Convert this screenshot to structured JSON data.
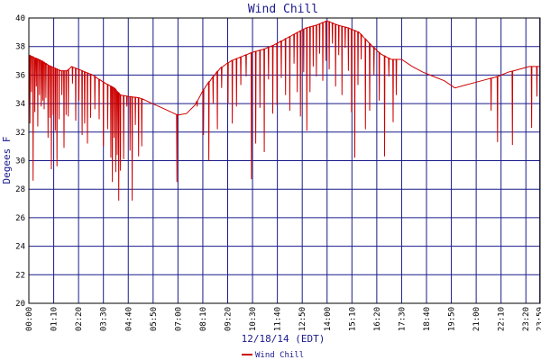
{
  "chart_data": {
    "type": "line",
    "title": "Wind Chill",
    "xlabel": "12/18/14 (EDT)",
    "ylabel": "Degees F",
    "ylim": [
      20,
      40
    ],
    "y_ticks": [
      20,
      22,
      24,
      26,
      28,
      30,
      32,
      34,
      36,
      38,
      40
    ],
    "x_tick_labels": [
      "00:00",
      "01:10",
      "02:20",
      "03:30",
      "04:40",
      "05:50",
      "07:00",
      "08:10",
      "09:20",
      "10:30",
      "11:40",
      "12:50",
      "14:00",
      "15:10",
      "16:20",
      "17:30",
      "18:40",
      "19:50",
      "21:00",
      "22:10",
      "23:20",
      "23:59"
    ],
    "x_ticks_hours": [
      0,
      1.1667,
      2.3333,
      3.5,
      4.6667,
      5.8333,
      7.0,
      8.1667,
      9.3333,
      10.5,
      11.6667,
      12.8333,
      14.0,
      15.1667,
      16.3333,
      17.5,
      18.6667,
      19.8333,
      21.0,
      22.1667,
      23.3333,
      23.9833
    ],
    "xlim_hours": [
      0,
      24
    ],
    "grid": true,
    "legend_position": "bottom",
    "series": [
      {
        "name": "Wind Chill",
        "color": "#cc0000",
        "baseline_x_hours": [
          0,
          0.3,
          0.6,
          0.9,
          1.2,
          1.5,
          1.8,
          2.0,
          2.5,
          3.0,
          3.5,
          4.0,
          4.3,
          4.7,
          5.2,
          5.8,
          6.4,
          7.0,
          7.4,
          7.8,
          8.2,
          8.6,
          9.0,
          9.5,
          10.0,
          10.5,
          11.0,
          11.5,
          12.0,
          12.5,
          13.0,
          13.5,
          14.0,
          14.5,
          15.0,
          15.5,
          16.0,
          16.5,
          17.0,
          17.5,
          18.0,
          18.5,
          19.0,
          19.5,
          20.0,
          20.5,
          21.0,
          21.5,
          22.0,
          22.5,
          23.0,
          23.5,
          24.0
        ],
        "baseline_y": [
          37.4,
          37.2,
          37.0,
          36.7,
          36.5,
          36.3,
          36.3,
          36.6,
          36.3,
          36.0,
          35.5,
          35.1,
          34.6,
          34.5,
          34.4,
          34.0,
          33.6,
          33.2,
          33.3,
          33.9,
          35.0,
          35.8,
          36.5,
          37.0,
          37.3,
          37.6,
          37.8,
          38.1,
          38.5,
          38.9,
          39.3,
          39.5,
          39.8,
          39.5,
          39.3,
          39.0,
          38.2,
          37.5,
          37.1,
          37.1,
          36.6,
          36.2,
          35.9,
          35.6,
          35.1,
          35.3,
          35.5,
          35.7,
          35.9,
          36.2,
          36.4,
          36.6,
          36.6
        ],
        "dips": [
          {
            "x": 0.05,
            "y": 32.6
          },
          {
            "x": 0.12,
            "y": 34.8
          },
          {
            "x": 0.2,
            "y": 28.6
          },
          {
            "x": 0.28,
            "y": 33.4
          },
          {
            "x": 0.35,
            "y": 35.2
          },
          {
            "x": 0.42,
            "y": 32.4
          },
          {
            "x": 0.5,
            "y": 34.6
          },
          {
            "x": 0.58,
            "y": 33.8
          },
          {
            "x": 0.65,
            "y": 34.2
          },
          {
            "x": 0.72,
            "y": 33.6
          },
          {
            "x": 0.8,
            "y": 34.4
          },
          {
            "x": 0.9,
            "y": 31.6
          },
          {
            "x": 0.98,
            "y": 33.0
          },
          {
            "x": 1.06,
            "y": 29.4
          },
          {
            "x": 1.15,
            "y": 33.2
          },
          {
            "x": 1.24,
            "y": 32.1
          },
          {
            "x": 1.32,
            "y": 29.6
          },
          {
            "x": 1.42,
            "y": 32.9
          },
          {
            "x": 1.55,
            "y": 34.6
          },
          {
            "x": 1.65,
            "y": 30.9
          },
          {
            "x": 1.75,
            "y": 33.2
          },
          {
            "x": 1.85,
            "y": 33.1
          },
          {
            "x": 2.05,
            "y": 35.4
          },
          {
            "x": 2.2,
            "y": 32.8
          },
          {
            "x": 2.35,
            "y": 34.2
          },
          {
            "x": 2.5,
            "y": 31.8
          },
          {
            "x": 2.62,
            "y": 32.6
          },
          {
            "x": 2.75,
            "y": 31.2
          },
          {
            "x": 2.9,
            "y": 33.0
          },
          {
            "x": 3.1,
            "y": 33.6
          },
          {
            "x": 3.3,
            "y": 32.9
          },
          {
            "x": 3.5,
            "y": 31.0
          },
          {
            "x": 3.7,
            "y": 32.2
          },
          {
            "x": 3.85,
            "y": 30.2
          },
          {
            "x": 3.92,
            "y": 28.5
          },
          {
            "x": 4.0,
            "y": 31.6
          },
          {
            "x": 4.08,
            "y": 29.2
          },
          {
            "x": 4.15,
            "y": 30.4
          },
          {
            "x": 4.22,
            "y": 27.2
          },
          {
            "x": 4.3,
            "y": 29.3
          },
          {
            "x": 4.45,
            "y": 30.1
          },
          {
            "x": 4.6,
            "y": 33.8
          },
          {
            "x": 4.75,
            "y": 30.7
          },
          {
            "x": 4.85,
            "y": 27.2
          },
          {
            "x": 5.0,
            "y": 32.5
          },
          {
            "x": 5.15,
            "y": 30.3
          },
          {
            "x": 5.3,
            "y": 31.0
          },
          {
            "x": 6.95,
            "y": 28.5
          },
          {
            "x": 7.9,
            "y": 33.8
          },
          {
            "x": 8.2,
            "y": 31.8
          },
          {
            "x": 8.45,
            "y": 30.0
          },
          {
            "x": 8.65,
            "y": 34.0
          },
          {
            "x": 8.85,
            "y": 32.2
          },
          {
            "x": 9.05,
            "y": 35.1
          },
          {
            "x": 9.35,
            "y": 34.0
          },
          {
            "x": 9.55,
            "y": 32.6
          },
          {
            "x": 9.75,
            "y": 33.8
          },
          {
            "x": 9.95,
            "y": 35.3
          },
          {
            "x": 10.2,
            "y": 35.9
          },
          {
            "x": 10.45,
            "y": 28.7
          },
          {
            "x": 10.65,
            "y": 31.2
          },
          {
            "x": 10.85,
            "y": 33.7
          },
          {
            "x": 11.05,
            "y": 30.6
          },
          {
            "x": 11.25,
            "y": 35.7
          },
          {
            "x": 11.45,
            "y": 33.3
          },
          {
            "x": 11.65,
            "y": 33.9
          },
          {
            "x": 11.85,
            "y": 35.8
          },
          {
            "x": 12.05,
            "y": 34.6
          },
          {
            "x": 12.25,
            "y": 33.5
          },
          {
            "x": 12.45,
            "y": 36.8
          },
          {
            "x": 12.6,
            "y": 34.8
          },
          {
            "x": 12.75,
            "y": 33.1
          },
          {
            "x": 12.9,
            "y": 36.2
          },
          {
            "x": 13.05,
            "y": 32.1
          },
          {
            "x": 13.2,
            "y": 34.8
          },
          {
            "x": 13.35,
            "y": 36.6
          },
          {
            "x": 13.5,
            "y": 35.9
          },
          {
            "x": 13.65,
            "y": 37.5
          },
          {
            "x": 13.8,
            "y": 35.6
          },
          {
            "x": 13.95,
            "y": 37.0
          },
          {
            "x": 14.1,
            "y": 36.4
          },
          {
            "x": 14.25,
            "y": 38.2
          },
          {
            "x": 14.4,
            "y": 35.2
          },
          {
            "x": 14.55,
            "y": 37.4
          },
          {
            "x": 14.7,
            "y": 34.6
          },
          {
            "x": 14.85,
            "y": 37.9
          },
          {
            "x": 15.0,
            "y": 36.3
          },
          {
            "x": 15.15,
            "y": 33.4
          },
          {
            "x": 15.3,
            "y": 30.2
          },
          {
            "x": 15.45,
            "y": 35.3
          },
          {
            "x": 15.6,
            "y": 37.1
          },
          {
            "x": 15.8,
            "y": 32.2
          },
          {
            "x": 16.0,
            "y": 33.5
          },
          {
            "x": 16.2,
            "y": 36.0
          },
          {
            "x": 16.45,
            "y": 34.2
          },
          {
            "x": 16.7,
            "y": 30.3
          },
          {
            "x": 16.9,
            "y": 35.9
          },
          {
            "x": 17.1,
            "y": 32.7
          },
          {
            "x": 17.25,
            "y": 34.6
          },
          {
            "x": 21.7,
            "y": 33.5
          },
          {
            "x": 22.0,
            "y": 31.3
          },
          {
            "x": 22.7,
            "y": 31.1
          },
          {
            "x": 23.6,
            "y": 32.3
          },
          {
            "x": 23.85,
            "y": 34.5
          }
        ]
      }
    ]
  }
}
